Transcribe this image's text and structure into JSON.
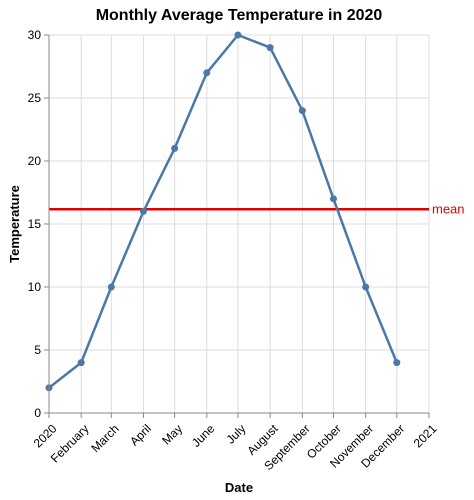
{
  "chart_data": {
    "type": "line",
    "title": "Monthly Average Temperature in 2020",
    "xlabel": "Date",
    "ylabel": "Temperature",
    "x_axis_kind": "time",
    "xlim": [
      "2020-01-01",
      "2021-01-01"
    ],
    "ylim": [
      0,
      30
    ],
    "y_ticks": [
      0,
      5,
      10,
      15,
      20,
      25,
      30
    ],
    "x_tick_labels": [
      "2020",
      "February",
      "March",
      "April",
      "May",
      "June",
      "July",
      "August",
      "September",
      "October",
      "November",
      "December",
      "2021"
    ],
    "grid": true,
    "series": [
      {
        "x": [
          "2020-01-01",
          "2020-02-01",
          "2020-03-01",
          "2020-04-01",
          "2020-05-01",
          "2020-06-01",
          "2020-07-01",
          "2020-08-01",
          "2020-09-01",
          "2020-10-01",
          "2020-11-01",
          "2020-12-01"
        ],
        "values": [
          2,
          4,
          10,
          16,
          21,
          27,
          30,
          29,
          24,
          17,
          10,
          4
        ],
        "color": "#4c78a8"
      }
    ],
    "reference_line": {
      "label": "mean",
      "value": 16.17,
      "color": "#e00000"
    }
  }
}
